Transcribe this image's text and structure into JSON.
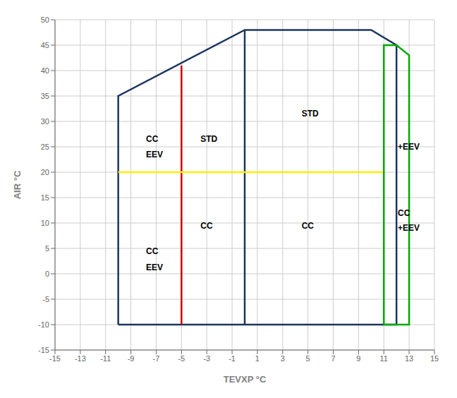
{
  "chart_data": {
    "type": "line",
    "xlabel": "TEVXP °C",
    "ylabel": "AIR °C",
    "xlim": [
      -15,
      15
    ],
    "ylim": [
      -15,
      50
    ],
    "xticks": [
      -15,
      -13,
      -11,
      -9,
      -7,
      -5,
      -3,
      -1,
      1,
      3,
      5,
      7,
      9,
      11,
      13,
      15
    ],
    "yticks": [
      -15,
      -10,
      -5,
      0,
      5,
      10,
      15,
      20,
      25,
      30,
      35,
      40,
      45,
      50
    ],
    "grid": true,
    "series": [
      {
        "color": "#1c3560",
        "x": [
          -10,
          -10,
          0,
          0,
          10,
          12,
          12,
          -10
        ],
        "values": [
          -10,
          35,
          48,
          48,
          48,
          45,
          -10,
          -10
        ]
      },
      {
        "color": "#1c3560",
        "x": [
          0,
          0
        ],
        "values": [
          -10,
          48
        ]
      },
      {
        "color": "#cc0000",
        "x": [
          -5,
          -5
        ],
        "values": [
          -10,
          41
        ]
      },
      {
        "color": "#ffee00",
        "x": [
          -10,
          11
        ],
        "values": [
          20,
          20
        ]
      },
      {
        "color": "#00aa00",
        "x": [
          11,
          11,
          12,
          13,
          13,
          11
        ],
        "values": [
          -10,
          45,
          45,
          43,
          -10,
          -10
        ]
      }
    ],
    "annotations": [
      {
        "text": "CC",
        "x": -7.8,
        "y": 26.5
      },
      {
        "text": "EEV",
        "x": -7.8,
        "y": 23.5
      },
      {
        "text": "STD",
        "x": -3.5,
        "y": 26.5
      },
      {
        "text": "CC",
        "x": -3.5,
        "y": 9.5
      },
      {
        "text": "CC",
        "x": -7.8,
        "y": 4.5
      },
      {
        "text": "EEV",
        "x": -7.8,
        "y": 1.2
      },
      {
        "text": "STD",
        "x": 4.5,
        "y": 31.5
      },
      {
        "text": "CC",
        "x": 4.5,
        "y": 9.5
      },
      {
        "text": "+EEV",
        "x": 12.1,
        "y": 25.0
      },
      {
        "text": "CC",
        "x": 12.1,
        "y": 12.0
      },
      {
        "text": "+EEV",
        "x": 12.1,
        "y": 9.0
      }
    ]
  }
}
